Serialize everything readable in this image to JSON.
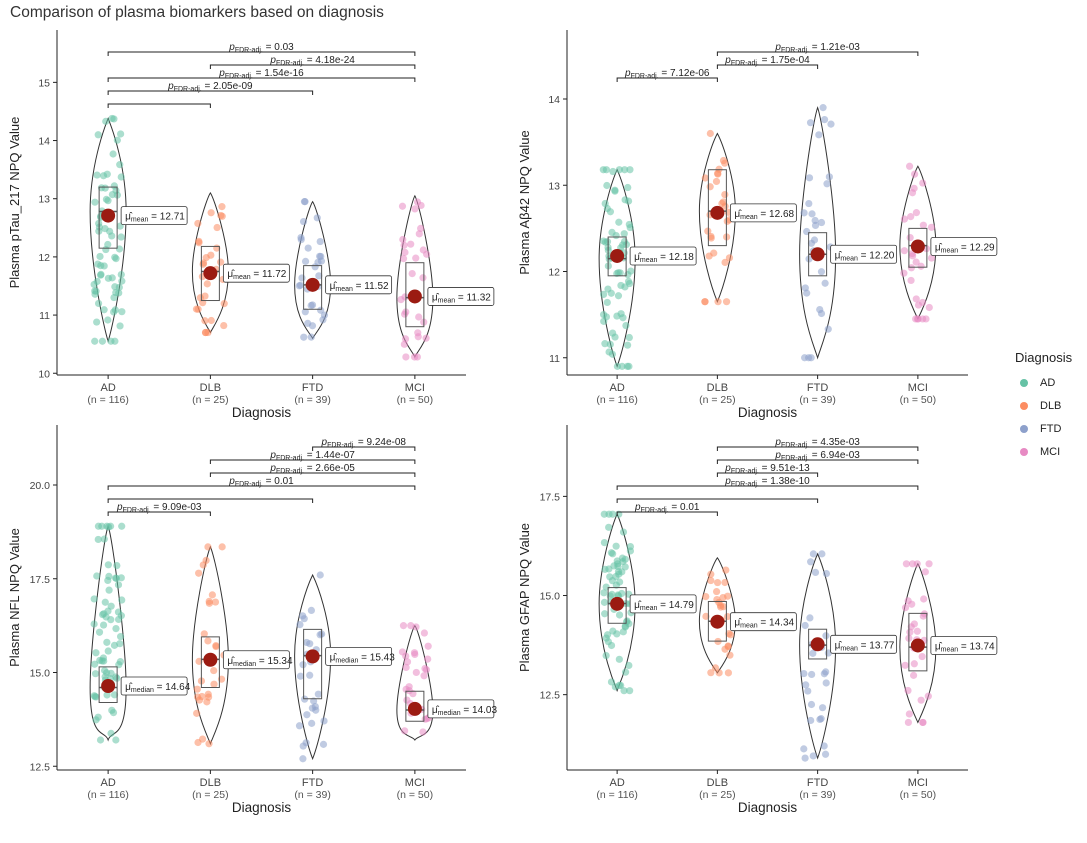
{
  "page": {
    "title": "Comparison of plasma biomarkers based on diagnosis"
  },
  "legend": {
    "title": "Diagnosis",
    "items": [
      {
        "label": "AD",
        "color": "#66c2a5"
      },
      {
        "label": "DLB",
        "color": "#fc8d62"
      },
      {
        "label": "FTD",
        "color": "#8da0cb"
      },
      {
        "label": "MCI",
        "color": "#e78ac3"
      }
    ]
  },
  "chart_data": [
    {
      "type": "violin",
      "ylabel": "Plasma pTau_217 NPQ Value",
      "xlabel": "Diagnosis",
      "ylim": [
        9.97,
        15.9
      ],
      "yticks": [
        10,
        11,
        12,
        13,
        14,
        15
      ],
      "ytick_labels": [
        "10",
        "11",
        "12",
        "13",
        "14",
        "15"
      ],
      "categories": [
        "AD",
        "DLB",
        "FTD",
        "MCI"
      ],
      "counts": [
        "(n = 116)",
        "(n = 25)",
        "(n = 39)",
        "(n = 50)"
      ],
      "groups": [
        {
          "min": 10.55,
          "max": 14.38,
          "q1": 12.15,
          "median": 12.78,
          "q3": 13.2,
          "mean": 12.71,
          "mean_label": "12.71"
        },
        {
          "min": 10.7,
          "max": 13.1,
          "q1": 11.25,
          "median": 11.75,
          "q3": 12.18,
          "mean": 11.72,
          "mean_label": "11.72"
        },
        {
          "min": 10.6,
          "max": 12.95,
          "q1": 11.1,
          "median": 11.52,
          "q3": 11.85,
          "mean": 11.52,
          "mean_label": "11.52"
        },
        {
          "min": 10.28,
          "max": 13.05,
          "q1": 10.8,
          "median": 11.3,
          "q3": 11.9,
          "mean": 11.32,
          "mean_label": "11.32"
        }
      ],
      "mean_stat": "mean",
      "comparisons": [
        {
          "from": 0,
          "to": 3,
          "p": "0.03"
        },
        {
          "from": 1,
          "to": 3,
          "p": "4.18e-24"
        },
        {
          "from": 0,
          "to": 3,
          "p": "1.54e-16"
        },
        {
          "from": 0,
          "to": 2,
          "p": "2.05e-09"
        },
        {
          "from": 0,
          "to": 1,
          "p": ""
        }
      ]
    },
    {
      "type": "violin",
      "ylabel": "Plasma Aβ42 NPQ Value",
      "xlabel": "Diagnosis",
      "ylim": [
        10.8,
        14.8
      ],
      "yticks": [
        11,
        12,
        13,
        14
      ],
      "ytick_labels": [
        "11",
        "12",
        "13",
        "14"
      ],
      "categories": [
        "AD",
        "DLB",
        "FTD",
        "MCI"
      ],
      "counts": [
        "(n = 116)",
        "(n = 25)",
        "(n = 39)",
        "(n = 50)"
      ],
      "groups": [
        {
          "min": 10.9,
          "max": 13.18,
          "q1": 11.95,
          "median": 12.15,
          "q3": 12.4,
          "mean": 12.18,
          "mean_label": "12.18"
        },
        {
          "min": 11.65,
          "max": 13.6,
          "q1": 12.3,
          "median": 12.7,
          "q3": 13.18,
          "mean": 12.68,
          "mean_label": "12.68"
        },
        {
          "min": 11.0,
          "max": 13.9,
          "q1": 11.95,
          "median": 12.2,
          "q3": 12.45,
          "mean": 12.2,
          "mean_label": "12.20"
        },
        {
          "min": 11.45,
          "max": 13.22,
          "q1": 12.05,
          "median": 12.3,
          "q3": 12.5,
          "mean": 12.29,
          "mean_label": "12.29"
        }
      ],
      "mean_stat": "mean",
      "comparisons": [
        {
          "from": 1,
          "to": 3,
          "p": "1.21e-03"
        },
        {
          "from": 1,
          "to": 2,
          "p": "1.75e-04"
        },
        {
          "from": 0,
          "to": 1,
          "p": "7.12e-06"
        }
      ]
    },
    {
      "type": "violin",
      "ylabel": "Plasma NFL NPQ Value",
      "xlabel": "Diagnosis",
      "ylim": [
        12.4,
        21.6
      ],
      "yticks": [
        12.5,
        15.0,
        17.5,
        20.0
      ],
      "ytick_labels": [
        "12.5",
        "15.0",
        "17.5",
        "20.0"
      ],
      "categories": [
        "AD",
        "DLB",
        "FTD",
        "MCI"
      ],
      "counts": [
        "(n = 116)",
        "(n = 25)",
        "(n = 39)",
        "(n = 50)"
      ],
      "groups": [
        {
          "min": 13.2,
          "max": 18.9,
          "q1": 14.2,
          "median": 14.6,
          "q3": 15.15,
          "mean": 14.64,
          "mean_label": "14.64"
        },
        {
          "min": 13.1,
          "max": 18.35,
          "q1": 14.6,
          "median": 15.35,
          "q3": 15.95,
          "mean": 15.34,
          "mean_label": "15.34"
        },
        {
          "min": 12.7,
          "max": 17.6,
          "q1": 14.3,
          "median": 15.45,
          "q3": 16.15,
          "mean": 15.43,
          "mean_label": "15.43"
        },
        {
          "min": 13.2,
          "max": 16.25,
          "q1": 13.7,
          "median": 14.0,
          "q3": 14.5,
          "mean": 14.03,
          "mean_label": "14.03"
        }
      ],
      "mean_stat": "median",
      "comparisons": [
        {
          "from": 2,
          "to": 3,
          "p": "9.24e-08"
        },
        {
          "from": 1,
          "to": 3,
          "p": "1.44e-07"
        },
        {
          "from": 1,
          "to": 3,
          "p": "2.66e-05"
        },
        {
          "from": 0,
          "to": 3,
          "p": "0.01"
        },
        {
          "from": 0,
          "to": 2,
          "p": ""
        },
        {
          "from": 0,
          "to": 1,
          "p": "9.09e-03"
        }
      ]
    },
    {
      "type": "violin",
      "ylabel": "Plasma GFAP NPQ Value",
      "xlabel": "Diagnosis",
      "ylim": [
        10.6,
        19.3
      ],
      "yticks": [
        12.5,
        15.0,
        17.5
      ],
      "ytick_labels": [
        "12.5",
        "15.0",
        "17.5"
      ],
      "categories": [
        "AD",
        "DLB",
        "FTD",
        "MCI"
      ],
      "counts": [
        "(n = 116)",
        "(n = 25)",
        "(n = 39)",
        "(n = 50)"
      ],
      "groups": [
        {
          "min": 12.6,
          "max": 17.05,
          "q1": 14.3,
          "median": 14.8,
          "q3": 15.2,
          "mean": 14.79,
          "mean_label": "14.79"
        },
        {
          "min": 13.05,
          "max": 15.95,
          "q1": 13.85,
          "median": 14.35,
          "q3": 14.85,
          "mean": 14.34,
          "mean_label": "14.34"
        },
        {
          "min": 10.9,
          "max": 16.05,
          "q1": 13.4,
          "median": 13.75,
          "q3": 14.15,
          "mean": 13.77,
          "mean_label": "13.77"
        },
        {
          "min": 11.8,
          "max": 15.8,
          "q1": 13.1,
          "median": 13.7,
          "q3": 14.55,
          "mean": 13.74,
          "mean_label": "13.74"
        }
      ],
      "mean_stat": "mean",
      "comparisons": [
        {
          "from": 1,
          "to": 3,
          "p": "4.35e-03"
        },
        {
          "from": 1,
          "to": 3,
          "p": "6.94e-03"
        },
        {
          "from": 1,
          "to": 2,
          "p": "9.51e-13"
        },
        {
          "from": 0,
          "to": 3,
          "p": "1.38e-10"
        },
        {
          "from": 0,
          "to": 2,
          "p": ""
        },
        {
          "from": 0,
          "to": 1,
          "p": "0.01"
        }
      ]
    }
  ]
}
